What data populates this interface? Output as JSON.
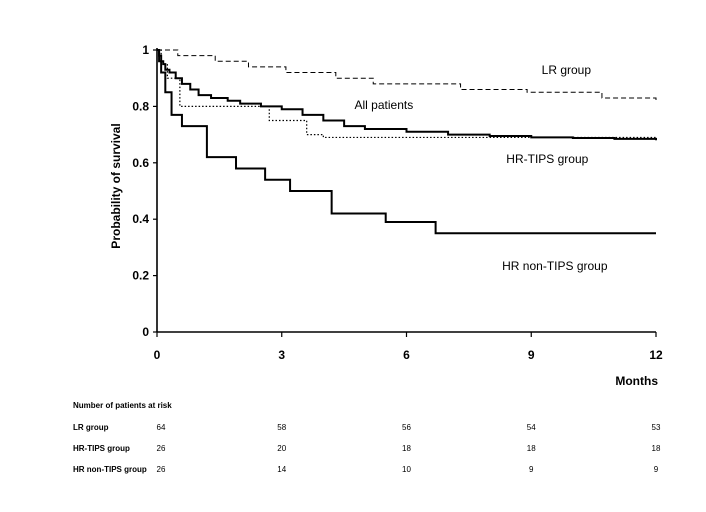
{
  "chart_data": {
    "type": "line",
    "ylabel": "Probability of survival",
    "xlabel": "Months",
    "xlim": [
      0,
      12
    ],
    "ylim": [
      0,
      1
    ],
    "xticks": [
      0,
      3,
      6,
      9,
      12
    ],
    "yticks": [
      0,
      0.2,
      0.4,
      0.6,
      0.8,
      1
    ],
    "ytick_labels": [
      "0",
      "0.2",
      "0.4",
      "0.6",
      "0.8",
      "1"
    ],
    "grid": false,
    "series": [
      {
        "name": "LR group",
        "style": "dashed",
        "label_pos": [
          9.25,
          0.915
        ],
        "x": [
          0,
          0.5,
          1.4,
          2.2,
          3.1,
          4.3,
          5.2,
          7.3,
          8.9,
          10.7,
          12
        ],
        "y": [
          1,
          0.98,
          0.96,
          0.94,
          0.92,
          0.9,
          0.88,
          0.86,
          0.85,
          0.83,
          0.82
        ]
      },
      {
        "name": "All patients",
        "style": "solid",
        "label_pos": [
          4.75,
          0.79
        ],
        "x": [
          0,
          0.05,
          0.1,
          0.15,
          0.2,
          0.3,
          0.45,
          0.6,
          0.8,
          1.0,
          1.3,
          1.7,
          2.0,
          2.5,
          3.0,
          3.5,
          4.0,
          4.5,
          5.0,
          6.0,
          7.0,
          8.0,
          9.0,
          10.0,
          11.0,
          12
        ],
        "y": [
          1,
          0.98,
          0.96,
          0.95,
          0.93,
          0.92,
          0.9,
          0.88,
          0.86,
          0.84,
          0.83,
          0.82,
          0.81,
          0.8,
          0.79,
          0.77,
          0.75,
          0.73,
          0.72,
          0.71,
          0.7,
          0.695,
          0.69,
          0.688,
          0.685,
          0.68
        ]
      },
      {
        "name": "HR-TIPS group",
        "style": "dotted",
        "label_pos": [
          8.4,
          0.6
        ],
        "x": [
          0,
          0.1,
          0.25,
          0.55,
          2.7,
          3.6,
          4.0,
          11.0,
          12
        ],
        "y": [
          1,
          0.95,
          0.9,
          0.8,
          0.75,
          0.7,
          0.69,
          0.69,
          0.69
        ]
      },
      {
        "name": "HR non-TIPS group",
        "style": "solid",
        "label_pos": [
          8.3,
          0.22
        ],
        "x": [
          0,
          0.05,
          0.1,
          0.2,
          0.35,
          0.6,
          1.2,
          1.9,
          2.6,
          3.2,
          4.2,
          5.5,
          6.7,
          12
        ],
        "y": [
          1,
          0.96,
          0.92,
          0.85,
          0.77,
          0.73,
          0.62,
          0.58,
          0.54,
          0.5,
          0.42,
          0.39,
          0.35,
          0.35
        ]
      }
    ]
  },
  "risk_table": {
    "title": "Number of patients at risk",
    "rows": [
      {
        "name": "LR group",
        "values": [
          "64",
          "58",
          "56",
          "54",
          "53"
        ]
      },
      {
        "name": "HR-TIPS group",
        "values": [
          "26",
          "20",
          "18",
          "18",
          "18"
        ]
      },
      {
        "name": "HR non-TIPS group",
        "values": [
          "26",
          "14",
          "10",
          "9",
          "9"
        ]
      }
    ]
  }
}
